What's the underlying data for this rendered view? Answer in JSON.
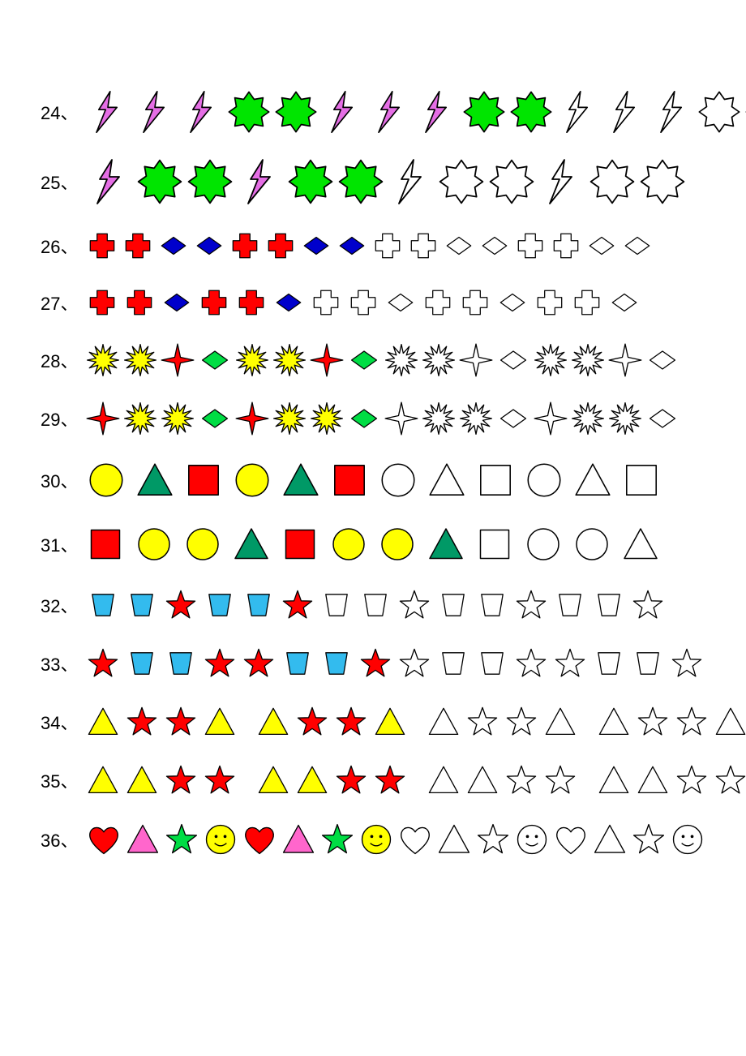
{
  "stroke": "#000000",
  "strokeWidth": 1.5,
  "colors": {
    "magenta": "#e56ee5",
    "green": "#00e500",
    "red": "#ff0000",
    "blue": "#0000cc",
    "yellow": "#ffff00",
    "teal": "#009966",
    "cyan": "#33bbee",
    "orange": "#ffcc00",
    "pink": "#ff66cc",
    "limegreen": "#00dd44",
    "white": "#ffffff"
  },
  "rows": [
    {
      "num": "24、",
      "size": 56,
      "gap": 0,
      "cells": [
        {
          "s": "bolt",
          "c": "magenta"
        },
        {
          "s": "bolt",
          "c": "magenta"
        },
        {
          "s": "bolt",
          "c": "magenta"
        },
        {
          "s": "seal",
          "c": "green"
        },
        {
          "s": "seal",
          "c": "green"
        },
        {
          "s": "bolt",
          "c": "magenta"
        },
        {
          "s": "bolt",
          "c": "magenta"
        },
        {
          "s": "bolt",
          "c": "magenta"
        },
        {
          "s": "seal",
          "c": "green"
        },
        {
          "s": "seal",
          "c": "green"
        },
        {
          "s": "bolt",
          "c": "white"
        },
        {
          "s": "bolt",
          "c": "white"
        },
        {
          "s": "bolt",
          "c": "white"
        },
        {
          "s": "seal",
          "c": "white"
        },
        {
          "s": "seal",
          "c": "white"
        }
      ]
    },
    {
      "num": "25、",
      "size": 60,
      "gap": 2,
      "cells": [
        {
          "s": "bolt",
          "c": "magenta"
        },
        {
          "s": "seal",
          "c": "green"
        },
        {
          "s": "seal",
          "c": "green"
        },
        {
          "s": "bolt",
          "c": "magenta"
        },
        {
          "s": "seal",
          "c": "green"
        },
        {
          "s": "seal",
          "c": "green"
        },
        {
          "s": "bolt",
          "c": "white"
        },
        {
          "s": "seal",
          "c": "white"
        },
        {
          "s": "seal",
          "c": "white"
        },
        {
          "s": "bolt",
          "c": "white"
        },
        {
          "s": "seal",
          "c": "white"
        },
        {
          "s": "seal",
          "c": "white"
        }
      ]
    },
    {
      "num": "26、",
      "size": 42,
      "gap": 2,
      "cells": [
        {
          "s": "cross",
          "c": "red"
        },
        {
          "s": "cross",
          "c": "red"
        },
        {
          "s": "diamond",
          "c": "blue"
        },
        {
          "s": "diamond",
          "c": "blue"
        },
        {
          "s": "cross",
          "c": "red"
        },
        {
          "s": "cross",
          "c": "red"
        },
        {
          "s": "diamond",
          "c": "blue"
        },
        {
          "s": "diamond",
          "c": "blue"
        },
        {
          "s": "cross",
          "c": "white"
        },
        {
          "s": "cross",
          "c": "white"
        },
        {
          "s": "diamond",
          "c": "white"
        },
        {
          "s": "diamond",
          "c": "white"
        },
        {
          "s": "cross",
          "c": "white"
        },
        {
          "s": "cross",
          "c": "white"
        },
        {
          "s": "diamond",
          "c": "white"
        },
        {
          "s": "diamond",
          "c": "white"
        }
      ]
    },
    {
      "num": "27、",
      "size": 42,
      "gap": 4,
      "cells": [
        {
          "s": "cross",
          "c": "red"
        },
        {
          "s": "cross",
          "c": "red"
        },
        {
          "s": "diamond",
          "c": "blue"
        },
        {
          "s": "cross",
          "c": "red"
        },
        {
          "s": "cross",
          "c": "red"
        },
        {
          "s": "diamond",
          "c": "blue"
        },
        {
          "s": "cross",
          "c": "white"
        },
        {
          "s": "cross",
          "c": "white"
        },
        {
          "s": "diamond",
          "c": "white"
        },
        {
          "s": "cross",
          "c": "white"
        },
        {
          "s": "cross",
          "c": "white"
        },
        {
          "s": "diamond",
          "c": "white"
        },
        {
          "s": "cross",
          "c": "white"
        },
        {
          "s": "cross",
          "c": "white"
        },
        {
          "s": "diamond",
          "c": "white"
        }
      ]
    },
    {
      "num": "28、",
      "size": 44,
      "gap": 2,
      "cells": [
        {
          "s": "burst",
          "c": "yellow"
        },
        {
          "s": "burst",
          "c": "yellow"
        },
        {
          "s": "star4",
          "c": "red"
        },
        {
          "s": "diamond",
          "c": "limegreen"
        },
        {
          "s": "burst",
          "c": "yellow"
        },
        {
          "s": "burst",
          "c": "yellow"
        },
        {
          "s": "star4",
          "c": "red"
        },
        {
          "s": "diamond",
          "c": "limegreen"
        },
        {
          "s": "burst",
          "c": "white"
        },
        {
          "s": "burst",
          "c": "white"
        },
        {
          "s": "star4",
          "c": "white"
        },
        {
          "s": "diamond",
          "c": "white"
        },
        {
          "s": "burst",
          "c": "white"
        },
        {
          "s": "burst",
          "c": "white"
        },
        {
          "s": "star4",
          "c": "white"
        },
        {
          "s": "diamond",
          "c": "white"
        }
      ]
    },
    {
      "num": "29、",
      "size": 44,
      "gap": 2,
      "cells": [
        {
          "s": "star4",
          "c": "red"
        },
        {
          "s": "burst",
          "c": "yellow"
        },
        {
          "s": "burst",
          "c": "yellow"
        },
        {
          "s": "diamond",
          "c": "limegreen"
        },
        {
          "s": "star4",
          "c": "red"
        },
        {
          "s": "burst",
          "c": "yellow"
        },
        {
          "s": "burst",
          "c": "yellow"
        },
        {
          "s": "diamond",
          "c": "limegreen"
        },
        {
          "s": "star4",
          "c": "white"
        },
        {
          "s": "burst",
          "c": "white"
        },
        {
          "s": "burst",
          "c": "white"
        },
        {
          "s": "diamond",
          "c": "white"
        },
        {
          "s": "star4",
          "c": "white"
        },
        {
          "s": "burst",
          "c": "white"
        },
        {
          "s": "burst",
          "c": "white"
        },
        {
          "s": "diamond",
          "c": "white"
        }
      ]
    },
    {
      "num": "30、",
      "size": 52,
      "gap": 8,
      "cells": [
        {
          "s": "circle",
          "c": "yellow"
        },
        {
          "s": "triangle",
          "c": "teal"
        },
        {
          "s": "square",
          "c": "red"
        },
        {
          "s": "circle",
          "c": "yellow"
        },
        {
          "s": "triangle",
          "c": "teal"
        },
        {
          "s": "square",
          "c": "red"
        },
        {
          "s": "circle",
          "c": "white"
        },
        {
          "s": "triangle",
          "c": "white"
        },
        {
          "s": "square",
          "c": "white"
        },
        {
          "s": "circle",
          "c": "white"
        },
        {
          "s": "triangle",
          "c": "white"
        },
        {
          "s": "square",
          "c": "white"
        }
      ]
    },
    {
      "num": "31、",
      "size": 50,
      "gap": 10,
      "cells": [
        {
          "s": "square",
          "c": "red"
        },
        {
          "s": "circle",
          "c": "yellow"
        },
        {
          "s": "circle",
          "c": "yellow"
        },
        {
          "s": "triangle",
          "c": "teal"
        },
        {
          "s": "square",
          "c": "red"
        },
        {
          "s": "circle",
          "c": "yellow"
        },
        {
          "s": "circle",
          "c": "yellow"
        },
        {
          "s": "triangle",
          "c": "teal"
        },
        {
          "s": "square",
          "c": "white"
        },
        {
          "s": "circle",
          "c": "white"
        },
        {
          "s": "circle",
          "c": "white"
        },
        {
          "s": "triangle",
          "c": "white"
        }
      ]
    },
    {
      "num": "32、",
      "size": 44,
      "gap": 4,
      "cells": [
        {
          "s": "trap",
          "c": "cyan"
        },
        {
          "s": "trap",
          "c": "cyan"
        },
        {
          "s": "star5",
          "c": "red"
        },
        {
          "s": "trap",
          "c": "cyan"
        },
        {
          "s": "trap",
          "c": "cyan"
        },
        {
          "s": "star5",
          "c": "red"
        },
        {
          "s": "trap",
          "c": "white"
        },
        {
          "s": "trap",
          "c": "white"
        },
        {
          "s": "star5",
          "c": "white"
        },
        {
          "s": "trap",
          "c": "white"
        },
        {
          "s": "trap",
          "c": "white"
        },
        {
          "s": "star5",
          "c": "white"
        },
        {
          "s": "trap",
          "c": "white"
        },
        {
          "s": "trap",
          "c": "white"
        },
        {
          "s": "star5",
          "c": "white"
        }
      ]
    },
    {
      "num": "33、",
      "size": 44,
      "gap": 4,
      "cells": [
        {
          "s": "star5",
          "c": "red"
        },
        {
          "s": "trap",
          "c": "cyan"
        },
        {
          "s": "trap",
          "c": "cyan"
        },
        {
          "s": "star5",
          "c": "red"
        },
        {
          "s": "star5",
          "c": "red"
        },
        {
          "s": "trap",
          "c": "cyan"
        },
        {
          "s": "trap",
          "c": "cyan"
        },
        {
          "s": "star5",
          "c": "red"
        },
        {
          "s": "star5",
          "c": "white"
        },
        {
          "s": "trap",
          "c": "white"
        },
        {
          "s": "trap",
          "c": "white"
        },
        {
          "s": "star5",
          "c": "white"
        },
        {
          "s": "star5",
          "c": "white"
        },
        {
          "s": "trap",
          "c": "white"
        },
        {
          "s": "trap",
          "c": "white"
        },
        {
          "s": "star5",
          "c": "white"
        }
      ]
    },
    {
      "num": "34、",
      "size": 44,
      "gap": 4,
      "cells": [
        {
          "s": "triangle",
          "c": "yellow"
        },
        {
          "s": "star5",
          "c": "red"
        },
        {
          "s": "star5",
          "c": "red"
        },
        {
          "s": "triangle",
          "c": "yellow"
        },
        {
          "s": "gap"
        },
        {
          "s": "triangle",
          "c": "yellow"
        },
        {
          "s": "star5",
          "c": "red"
        },
        {
          "s": "star5",
          "c": "red"
        },
        {
          "s": "triangle",
          "c": "yellow"
        },
        {
          "s": "gap"
        },
        {
          "s": "triangle",
          "c": "white"
        },
        {
          "s": "star5",
          "c": "white"
        },
        {
          "s": "star5",
          "c": "white"
        },
        {
          "s": "triangle",
          "c": "white"
        },
        {
          "s": "gap"
        },
        {
          "s": "triangle",
          "c": "white"
        },
        {
          "s": "star5",
          "c": "white"
        },
        {
          "s": "star5",
          "c": "white"
        },
        {
          "s": "triangle",
          "c": "white"
        }
      ]
    },
    {
      "num": "35、",
      "size": 44,
      "gap": 4,
      "cells": [
        {
          "s": "triangle",
          "c": "yellow"
        },
        {
          "s": "triangle",
          "c": "yellow"
        },
        {
          "s": "star5",
          "c": "red"
        },
        {
          "s": "star5",
          "c": "red"
        },
        {
          "s": "gap"
        },
        {
          "s": "triangle",
          "c": "yellow"
        },
        {
          "s": "triangle",
          "c": "yellow"
        },
        {
          "s": "star5",
          "c": "red"
        },
        {
          "s": "star5",
          "c": "red"
        },
        {
          "s": "gap"
        },
        {
          "s": "triangle",
          "c": "white"
        },
        {
          "s": "triangle",
          "c": "white"
        },
        {
          "s": "star5",
          "c": "white"
        },
        {
          "s": "star5",
          "c": "white"
        },
        {
          "s": "gap"
        },
        {
          "s": "triangle",
          "c": "white"
        },
        {
          "s": "triangle",
          "c": "white"
        },
        {
          "s": "star5",
          "c": "white"
        },
        {
          "s": "star5",
          "c": "white"
        }
      ]
    },
    {
      "num": "36、",
      "size": 46,
      "gap": 2,
      "cells": [
        {
          "s": "heart",
          "c": "red"
        },
        {
          "s": "triangle",
          "c": "pink"
        },
        {
          "s": "star5",
          "c": "limegreen"
        },
        {
          "s": "smiley",
          "c": "yellow"
        },
        {
          "s": "heart",
          "c": "red"
        },
        {
          "s": "triangle",
          "c": "pink"
        },
        {
          "s": "star5",
          "c": "limegreen"
        },
        {
          "s": "smiley",
          "c": "yellow"
        },
        {
          "s": "heart",
          "c": "white"
        },
        {
          "s": "triangle",
          "c": "white"
        },
        {
          "s": "star5",
          "c": "white"
        },
        {
          "s": "smiley",
          "c": "white"
        },
        {
          "s": "heart",
          "c": "white"
        },
        {
          "s": "triangle",
          "c": "white"
        },
        {
          "s": "star5",
          "c": "white"
        },
        {
          "s": "smiley",
          "c": "white"
        }
      ]
    }
  ]
}
